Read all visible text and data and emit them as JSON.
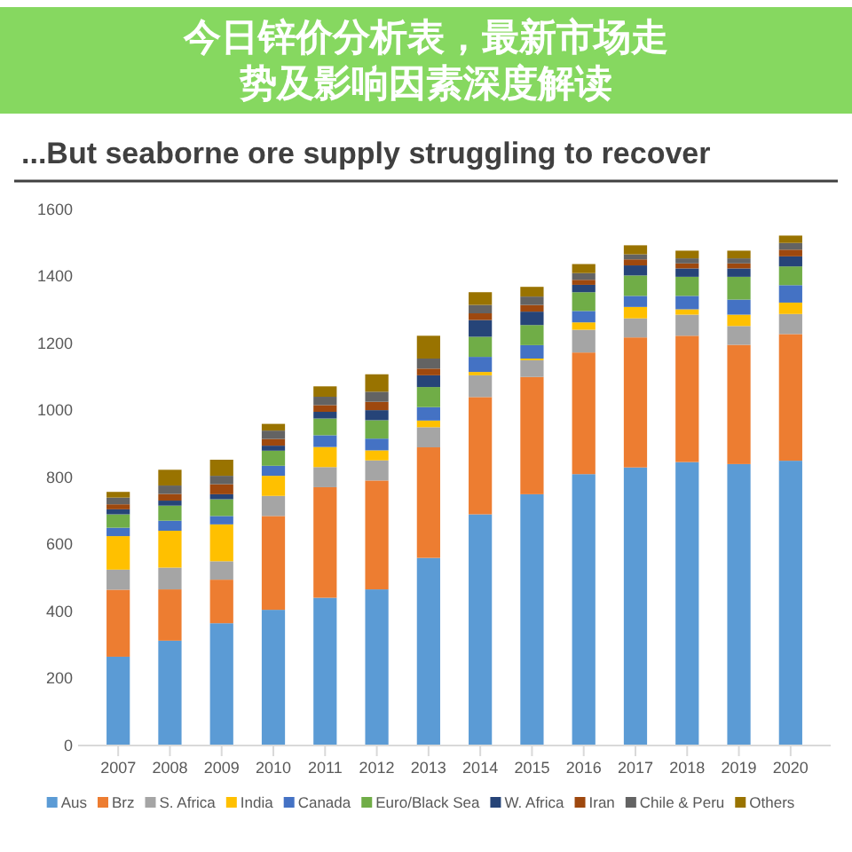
{
  "chart_data": {
    "type": "bar",
    "stacked": true,
    "title": "...But seaborne ore supply struggling to recover",
    "annotations": [
      "今日锌价分析表，最新市场走势及影响因素深度解读"
    ],
    "categories": [
      "2007",
      "2008",
      "2009",
      "2010",
      "2011",
      "2012",
      "2013",
      "2014",
      "2015",
      "2016",
      "2017",
      "2018",
      "2019",
      "2020"
    ],
    "series": [
      {
        "name": "Aus",
        "color": "#5b9bd5",
        "values": [
          265,
          313,
          365,
          405,
          441,
          466,
          560,
          690,
          750,
          810,
          830,
          846,
          840,
          850
        ]
      },
      {
        "name": "Brz",
        "color": "#ed7d31",
        "values": [
          200,
          153,
          130,
          280,
          330,
          325,
          330,
          350,
          350,
          363,
          388,
          377,
          356,
          378
        ]
      },
      {
        "name": "S. Africa",
        "color": "#a5a5a5",
        "values": [
          60,
          65,
          55,
          60,
          60,
          60,
          60,
          65,
          50,
          68,
          57,
          63,
          56,
          60
        ]
      },
      {
        "name": "India",
        "color": "#ffc000",
        "values": [
          100,
          110,
          110,
          60,
          60,
          30,
          20,
          10,
          5,
          22,
          34,
          16,
          34,
          34
        ]
      },
      {
        "name": "Canada",
        "color": "#4472c4",
        "values": [
          25,
          30,
          25,
          30,
          35,
          35,
          40,
          45,
          40,
          34,
          33,
          40,
          45,
          52
        ]
      },
      {
        "name": "Euro/Black Sea",
        "color": "#70ad47",
        "values": [
          40,
          45,
          50,
          45,
          50,
          55,
          60,
          60,
          60,
          56,
          61,
          57,
          68,
          56
        ]
      },
      {
        "name": "W. Africa",
        "color": "#264478",
        "values": [
          15,
          15,
          15,
          15,
          20,
          30,
          35,
          50,
          40,
          22,
          30,
          25,
          25,
          30
        ]
      },
      {
        "name": "Iran",
        "color": "#9e480e",
        "values": [
          15,
          20,
          30,
          20,
          20,
          25,
          20,
          20,
          20,
          15,
          18,
          15,
          15,
          20
        ]
      },
      {
        "name": "Chile & Peru",
        "color": "#636363",
        "values": [
          20,
          25,
          25,
          25,
          25,
          30,
          30,
          25,
          25,
          20,
          15,
          15,
          15,
          20
        ]
      },
      {
        "name": "Others",
        "color": "#997300",
        "values": [
          17,
          47,
          48,
          20,
          31,
          52,
          68,
          38,
          29,
          27,
          27,
          23,
          23,
          22
        ]
      }
    ],
    "ylim": [
      0,
      1600
    ],
    "yticks": [
      0,
      200,
      400,
      600,
      800,
      1000,
      1200,
      1400,
      1600
    ],
    "legend": "bottom"
  }
}
